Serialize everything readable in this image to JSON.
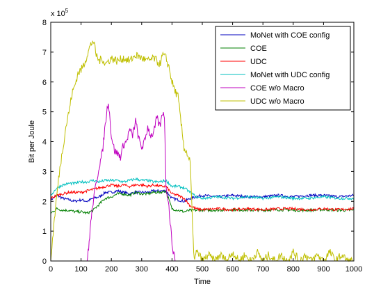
{
  "chart_data": {
    "type": "line",
    "title": "",
    "xlabel": "Time",
    "ylabel": "Bit per Joule",
    "xlim": [
      0,
      1000
    ],
    "ylim": [
      0,
      8
    ],
    "xticks": [
      "0",
      "100",
      "200",
      "300",
      "400",
      "500",
      "600",
      "700",
      "800",
      "900",
      "1000"
    ],
    "yticks": [
      "0",
      "1",
      "2",
      "3",
      "4",
      "5",
      "6",
      "7",
      "8"
    ],
    "y_multiplier": "x 10",
    "y_multiplier_exponent": "5",
    "grid": false,
    "legend_position": "top-right",
    "series": [
      {
        "name": "MoNet with COE config",
        "color": "#0000bf",
        "x": [
          0,
          20,
          40,
          60,
          80,
          100,
          120,
          140,
          160,
          180,
          200,
          220,
          240,
          260,
          280,
          300,
          320,
          340,
          360,
          380,
          400,
          420,
          440,
          460,
          480,
          500,
          550,
          600,
          650,
          700,
          750,
          800,
          850,
          900,
          950,
          1000
        ],
        "y": [
          2.05,
          2.2,
          2.1,
          2.05,
          2.0,
          2.05,
          2.0,
          2.1,
          2.15,
          2.3,
          2.3,
          2.35,
          2.3,
          2.25,
          2.3,
          2.3,
          2.3,
          2.35,
          2.35,
          2.35,
          2.1,
          2.05,
          2.0,
          2.1,
          2.15,
          2.2,
          2.15,
          2.2,
          2.15,
          2.15,
          2.2,
          2.15,
          2.2,
          2.2,
          2.15,
          2.2
        ]
      },
      {
        "name": "COE",
        "color": "#007f00",
        "x": [
          0,
          20,
          40,
          60,
          80,
          100,
          120,
          140,
          160,
          180,
          200,
          220,
          240,
          260,
          280,
          300,
          320,
          340,
          360,
          380,
          400,
          420,
          440,
          460,
          480,
          500,
          550,
          600,
          650,
          700,
          750,
          800,
          850,
          900,
          950,
          1000
        ],
        "y": [
          1.6,
          1.75,
          1.7,
          1.7,
          1.65,
          1.65,
          1.6,
          1.7,
          1.9,
          2.1,
          2.15,
          2.25,
          2.25,
          2.2,
          2.3,
          2.25,
          2.25,
          2.3,
          2.3,
          2.35,
          1.75,
          1.7,
          1.65,
          1.7,
          1.7,
          1.7,
          1.7,
          1.72,
          1.7,
          1.7,
          1.72,
          1.7,
          1.7,
          1.72,
          1.7,
          1.7
        ]
      },
      {
        "name": "UDC",
        "color": "#ff0000",
        "x": [
          0,
          20,
          40,
          60,
          80,
          100,
          120,
          140,
          160,
          180,
          200,
          220,
          240,
          260,
          280,
          300,
          320,
          340,
          360,
          380,
          400,
          420,
          440,
          460,
          480,
          500,
          550,
          600,
          650,
          700,
          750,
          800,
          850,
          900,
          950,
          1000
        ],
        "y": [
          2.1,
          2.2,
          2.25,
          2.3,
          2.3,
          2.3,
          2.35,
          2.4,
          2.45,
          2.5,
          2.55,
          2.5,
          2.55,
          2.5,
          2.55,
          2.55,
          2.5,
          2.55,
          2.5,
          2.5,
          2.25,
          2.2,
          2.1,
          1.85,
          1.75,
          1.72,
          1.75,
          1.72,
          1.75,
          1.72,
          1.75,
          1.75,
          1.72,
          1.75,
          1.72,
          1.75
        ]
      },
      {
        "name": "MoNet with UDC config",
        "color": "#00bfbf",
        "x": [
          0,
          20,
          40,
          60,
          80,
          100,
          120,
          140,
          160,
          180,
          200,
          220,
          240,
          260,
          280,
          300,
          320,
          340,
          360,
          380,
          400,
          420,
          440,
          460,
          480,
          500,
          550,
          600,
          650,
          700,
          750,
          800,
          850,
          900,
          950,
          1000
        ],
        "y": [
          2.2,
          2.45,
          2.55,
          2.6,
          2.6,
          2.65,
          2.65,
          2.7,
          2.65,
          2.7,
          2.7,
          2.7,
          2.65,
          2.7,
          2.75,
          2.7,
          2.7,
          2.65,
          2.65,
          2.7,
          2.5,
          2.5,
          2.45,
          2.3,
          2.15,
          2.1,
          2.15,
          2.1,
          2.15,
          2.1,
          2.15,
          2.1,
          2.1,
          2.15,
          2.1,
          2.1
        ]
      },
      {
        "name": "COE w/o Macro",
        "color": "#bf00bf",
        "x": [
          120,
          125,
          130,
          140,
          150,
          160,
          170,
          180,
          190,
          200,
          210,
          220,
          230,
          240,
          250,
          260,
          270,
          280,
          290,
          300,
          310,
          320,
          330,
          340,
          350,
          360,
          370,
          375,
          380,
          390,
          400,
          410
        ],
        "y": [
          0.0,
          0.4,
          1.1,
          2.0,
          2.6,
          3.2,
          3.6,
          4.6,
          5.4,
          4.2,
          3.7,
          3.6,
          3.5,
          3.9,
          4.0,
          4.4,
          4.2,
          4.7,
          4.1,
          3.8,
          4.0,
          4.5,
          4.2,
          4.3,
          4.8,
          4.5,
          5.0,
          4.9,
          2.6,
          1.8,
          0.6,
          0.0
        ]
      },
      {
        "name": "UDC w/o Macro",
        "color": "#bfbf00",
        "x": [
          0,
          10,
          20,
          30,
          40,
          50,
          60,
          70,
          80,
          90,
          100,
          110,
          120,
          130,
          140,
          150,
          160,
          170,
          180,
          200,
          220,
          240,
          260,
          280,
          300,
          320,
          340,
          360,
          370,
          380,
          390,
          400,
          410,
          420,
          430,
          440,
          450,
          460,
          470,
          475,
          480,
          490,
          500,
          520,
          540,
          560,
          580,
          600,
          620,
          640,
          660,
          680,
          700,
          720,
          740,
          760,
          780,
          800,
          820,
          840,
          860,
          880,
          900,
          920,
          940,
          960,
          980,
          1000
        ],
        "y": [
          0.0,
          1.2,
          2.2,
          3.1,
          3.8,
          4.5,
          5.0,
          5.6,
          5.9,
          6.3,
          6.4,
          6.6,
          6.9,
          7.2,
          7.4,
          6.9,
          6.7,
          6.8,
          6.6,
          6.8,
          6.7,
          6.8,
          6.7,
          6.9,
          6.8,
          6.7,
          6.8,
          6.6,
          6.9,
          6.8,
          6.5,
          6.0,
          5.7,
          5.5,
          4.6,
          3.8,
          3.6,
          3.3,
          0.6,
          0.0,
          0.3,
          0.2,
          0.0,
          0.2,
          0.0,
          0.2,
          0.0,
          0.3,
          0.0,
          0.2,
          0.0,
          0.3,
          0.0,
          0.2,
          0.0,
          0.2,
          0.0,
          0.3,
          0.0,
          0.2,
          0.0,
          0.2,
          0.0,
          0.3,
          0.0,
          0.2,
          0.0,
          0.0
        ]
      }
    ]
  }
}
